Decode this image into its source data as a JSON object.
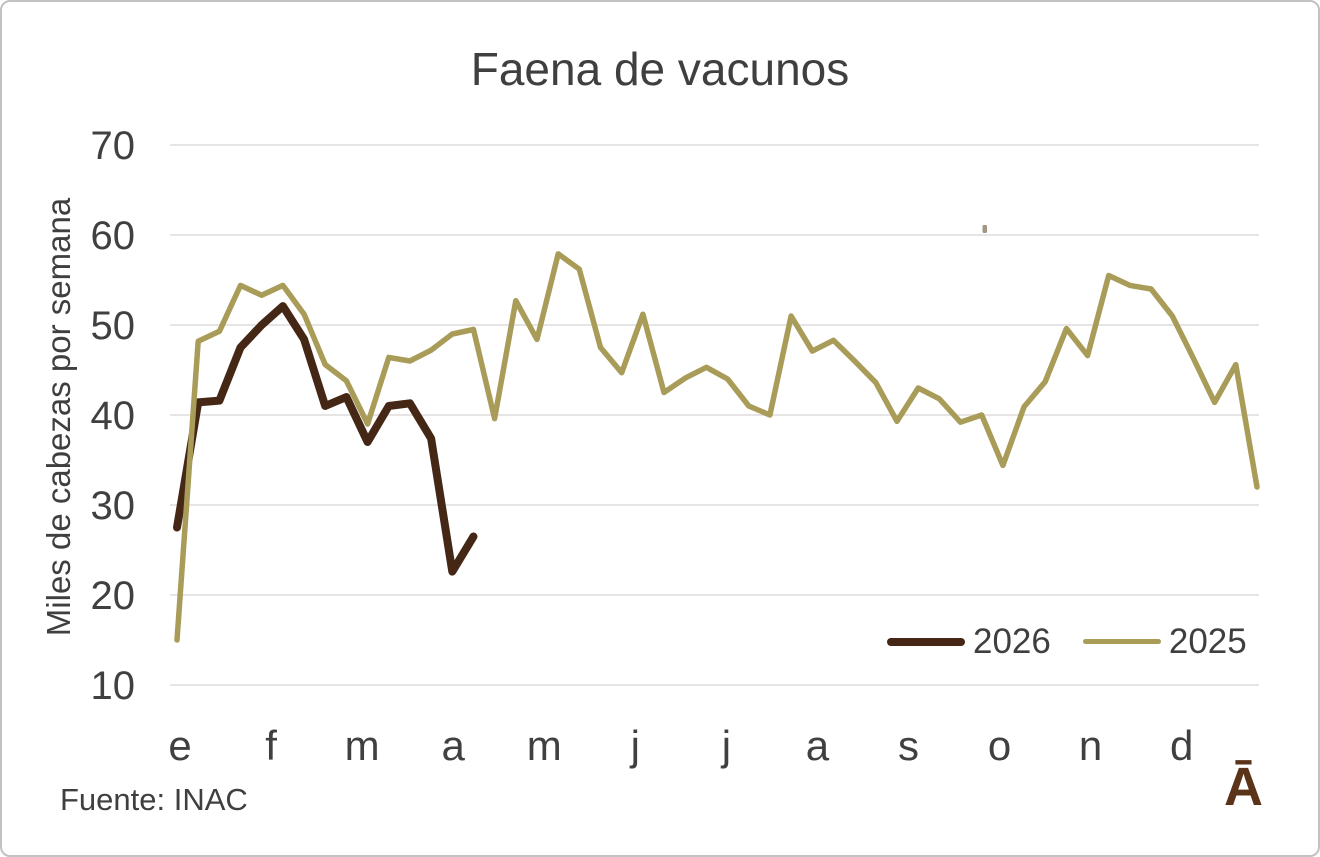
{
  "frame": {
    "background": "#ffffff",
    "border_color": "#c2c2c2"
  },
  "chart_data": {
    "type": "line",
    "title": "Faena de vacunos",
    "ylabel": "Miles de cabezas por semana",
    "xlabel": "",
    "x_unit": "semanas (weekly points)",
    "month_labels": [
      "e",
      "f",
      "m",
      "a",
      "m",
      "j",
      "j",
      "a",
      "s",
      "o",
      "n",
      "d"
    ],
    "ylim": [
      10,
      70
    ],
    "yticks": [
      70,
      60,
      50,
      40,
      30,
      20,
      10
    ],
    "grid": "horizontal",
    "grid_color": "#dedcdc",
    "legend_position": "inside-bottom-right",
    "series": [
      {
        "name": "2026",
        "color": "#452715",
        "stroke_width": 8,
        "values": [
          27.5,
          41.4,
          41.6,
          47.5,
          50.0,
          52.1,
          48.4,
          41.0,
          42.0,
          37.0,
          41.0,
          41.3,
          37.4,
          22.6,
          26.5
        ]
      },
      {
        "name": "2025",
        "color": "#a89c58",
        "stroke_width": 5.5,
        "values": [
          15.0,
          48.2,
          49.3,
          54.4,
          53.3,
          54.4,
          51.2,
          45.6,
          43.8,
          39.0,
          46.4,
          46.0,
          47.2,
          49.0,
          49.5,
          39.6,
          52.7,
          48.4,
          57.9,
          56.2,
          47.5,
          44.7,
          51.2,
          42.5,
          44.1,
          45.3,
          44.0,
          41.0,
          40.0,
          51.0,
          47.1,
          48.3,
          46.0,
          43.6,
          39.3,
          43.0,
          41.8,
          39.2,
          40.0,
          34.4,
          40.9,
          43.7,
          49.6,
          46.6,
          55.5,
          54.4,
          54.0,
          51.0,
          46.3,
          41.4,
          45.6,
          32.0
        ]
      }
    ]
  },
  "footer": {
    "source": "Fuente: INAC",
    "logo_text": "Ā",
    "logo_color": "#5a3318"
  },
  "text_color": "#3f3f3f"
}
